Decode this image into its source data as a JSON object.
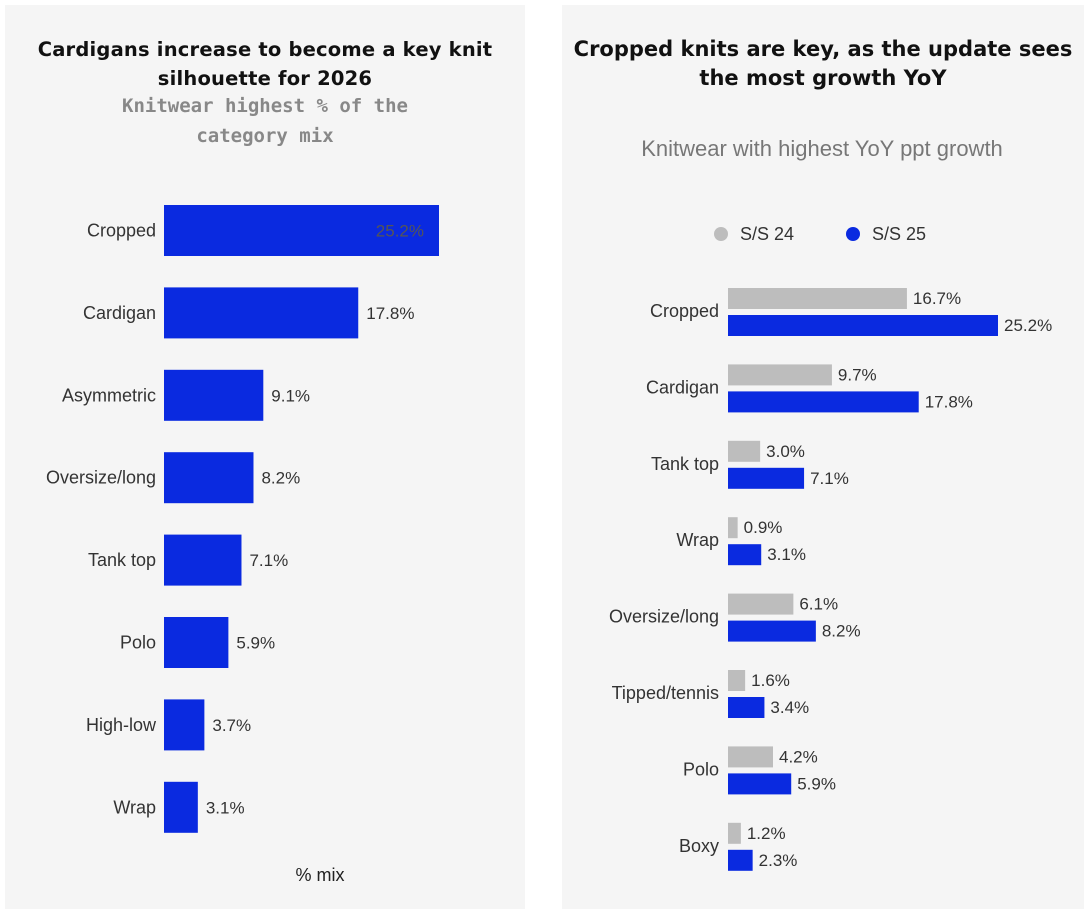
{
  "chart_data": [
    {
      "type": "bar",
      "orientation": "horizontal",
      "title": "Cardigans increase to become a key knit silhouette for 2026",
      "subtitle": "Knitwear highest % of the category mix",
      "xlabel": "% mix",
      "ylabel": "",
      "xlim": [
        0,
        25.2
      ],
      "categories": [
        "Cropped",
        "Cardigan",
        "Asymmetric",
        "Oversize/long",
        "Tank top",
        "Polo",
        "High-low",
        "Wrap"
      ],
      "values": [
        25.2,
        17.8,
        9.1,
        8.2,
        7.1,
        5.9,
        3.7,
        3.1
      ],
      "value_labels": [
        "25.2%",
        "17.8%",
        "9.1%",
        "8.2%",
        "7.1%",
        "5.9%",
        "3.7%",
        "3.1%"
      ],
      "color": "#0a2ae0"
    },
    {
      "type": "bar",
      "orientation": "horizontal",
      "title": "Cropped knits are key, as the update sees the most growth YoY",
      "subtitle": "Knitwear with highest YoY ppt growth",
      "legend": [
        "S/S 24",
        "S/S 25"
      ],
      "legend_position": "top-center",
      "xlim": [
        0,
        25.2
      ],
      "categories": [
        "Cropped",
        "Cardigan",
        "Tank top",
        "Wrap",
        "Oversize/long",
        "Tipped/tennis",
        "Polo",
        "Boxy"
      ],
      "series": [
        {
          "name": "S/S 24",
          "color": "#bdbdbd",
          "values": [
            16.7,
            9.7,
            3.0,
            0.9,
            6.1,
            1.6,
            4.2,
            1.2
          ],
          "labels": [
            "16.7%",
            "9.7%",
            "3.0%",
            "0.9%",
            "6.1%",
            "1.6%",
            "4.2%",
            "1.2%"
          ]
        },
        {
          "name": "S/S 25",
          "color": "#0a2ae0",
          "values": [
            25.2,
            17.8,
            7.1,
            3.1,
            8.2,
            3.4,
            5.9,
            2.3
          ],
          "labels": [
            "25.2%",
            "17.8%",
            "7.1%",
            "3.1%",
            "8.2%",
            "3.4%",
            "5.9%",
            "2.3%"
          ]
        }
      ]
    }
  ]
}
